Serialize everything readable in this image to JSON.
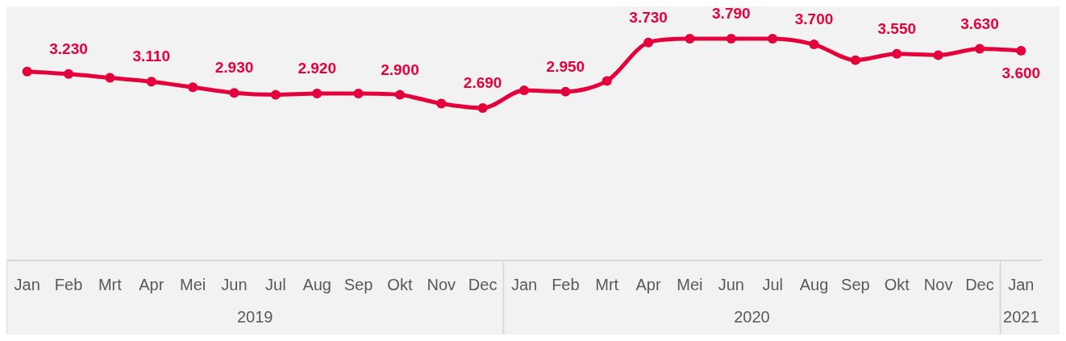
{
  "chart_data": {
    "type": "line",
    "categories": [
      "Jan",
      "Feb",
      "Mrt",
      "Apr",
      "Mei",
      "Jun",
      "Jul",
      "Aug",
      "Sep",
      "Okt",
      "Nov",
      "Dec",
      "Jan",
      "Feb",
      "Mrt",
      "Apr",
      "Mei",
      "Jun",
      "Jul",
      "Aug",
      "Sep",
      "Okt",
      "Nov",
      "Dec",
      "Jan"
    ],
    "series": [
      {
        "color": "#e4003b",
        "values": [
          3.27,
          3.23,
          3.17,
          3.11,
          3.02,
          2.93,
          2.9,
          2.92,
          2.92,
          2.9,
          2.76,
          2.69,
          2.97,
          2.95,
          3.12,
          3.73,
          3.79,
          3.79,
          3.79,
          3.7,
          3.45,
          3.55,
          3.53,
          3.63,
          3.6
        ],
        "value_labels": [
          null,
          "3.230",
          null,
          "3.110",
          null,
          "2.930",
          null,
          "2.920",
          null,
          "2.900",
          null,
          "2.690",
          null,
          "2.950",
          null,
          "3.730",
          null,
          "3.790",
          null,
          "3.700",
          null,
          "3.550",
          null,
          "3.630",
          "3.600"
        ]
      }
    ],
    "annotations": [
      "2019",
      "2020",
      "2021"
    ],
    "marker": "circle",
    "line_style": "solid"
  }
}
